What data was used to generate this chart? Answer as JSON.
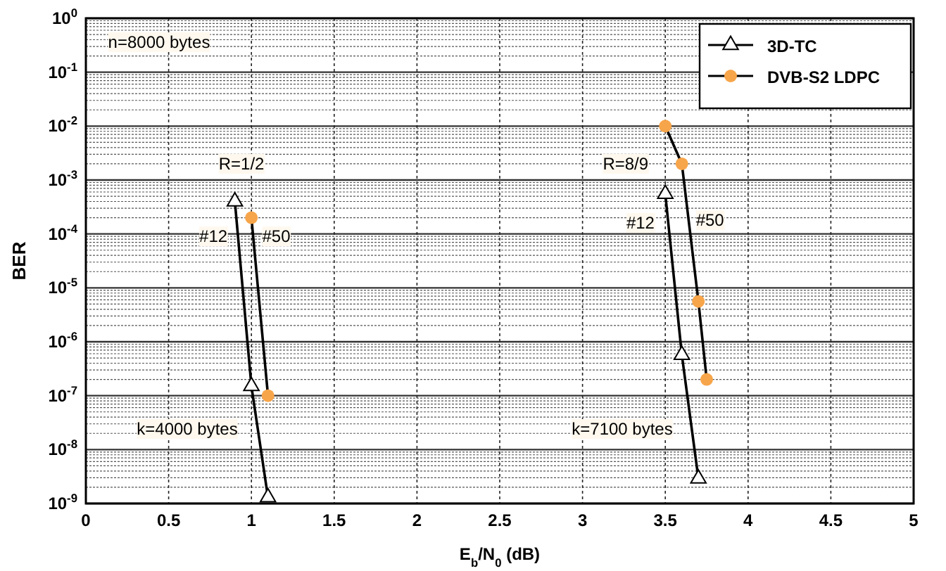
{
  "chart_data": {
    "type": "line",
    "xlabel": "E$_{b}$/N$_{0}$ (dB)",
    "ylabel": "BER",
    "log": "y",
    "grid": true,
    "legend": "top right",
    "xlim": [
      0,
      5
    ],
    "xticks": [
      0,
      0.5,
      1,
      1.5,
      2,
      2.5,
      3,
      3.5,
      4,
      4.5,
      5
    ],
    "ylim": [
      1e-09,
      1
    ],
    "yticks": [
      {
        "value": 1,
        "label": "10$^{0}$"
      },
      {
        "value": 0.1,
        "label": "10$^{-1}$"
      },
      {
        "value": 0.01,
        "label": "10$^{-2}$"
      },
      {
        "value": 0.001,
        "label": "10$^{-3}$"
      },
      {
        "value": 0.0001,
        "label": "10$^{-4}$"
      },
      {
        "value": 1e-05,
        "label": "10$^{-5}$"
      },
      {
        "value": 1e-06,
        "label": "10$^{-6}$"
      },
      {
        "value": 1e-07,
        "label": "10$^{-7}$"
      },
      {
        "value": 1e-08,
        "label": "10$^{-8}$"
      },
      {
        "value": 1e-09,
        "label": "10$^{-9}$"
      }
    ],
    "series": [
      {
        "name": "3D-TC",
        "color": "#000000",
        "marker": "triangle",
        "x": [
          0.9,
          1.0,
          1.1
        ],
        "values": [
          0.0004,
          1.5e-07,
          1.3e-09
        ]
      },
      {
        "name": "DVB-S2 LDPC",
        "color": "#f7a54a",
        "marker": "circle",
        "x": [
          1.0,
          1.1
        ],
        "values": [
          0.0002,
          1e-07
        ]
      },
      {
        "color": "#000000",
        "marker": "triangle",
        "x": [
          3.5,
          3.6,
          3.7
        ],
        "values": [
          0.00055,
          5.7e-07,
          2.9e-09
        ]
      },
      {
        "color": "#f7a54a",
        "marker": "circle",
        "x": [
          3.5,
          3.6,
          3.7,
          3.75
        ],
        "values": [
          0.01,
          0.002,
          5.6e-06,
          2e-07
        ]
      }
    ],
    "annotations": [
      "n=8000 bytes",
      {
        "text": "R=1/2",
        "x": 0.94,
        "y": 0.002
      },
      {
        "text": "#12",
        "x": 0.77,
        "y": 9e-05
      },
      {
        "text": "#50",
        "x": 1.15,
        "y": 9e-05
      },
      "k=4000 bytes",
      {
        "text": "R=8/9",
        "x": 3.26,
        "y": 0.002
      },
      {
        "text": "#12",
        "x": 3.35,
        "y": 0.00016
      },
      {
        "text": "#50",
        "x": 3.77,
        "y": 0.00018
      },
      "k=7100 bytes"
    ]
  }
}
